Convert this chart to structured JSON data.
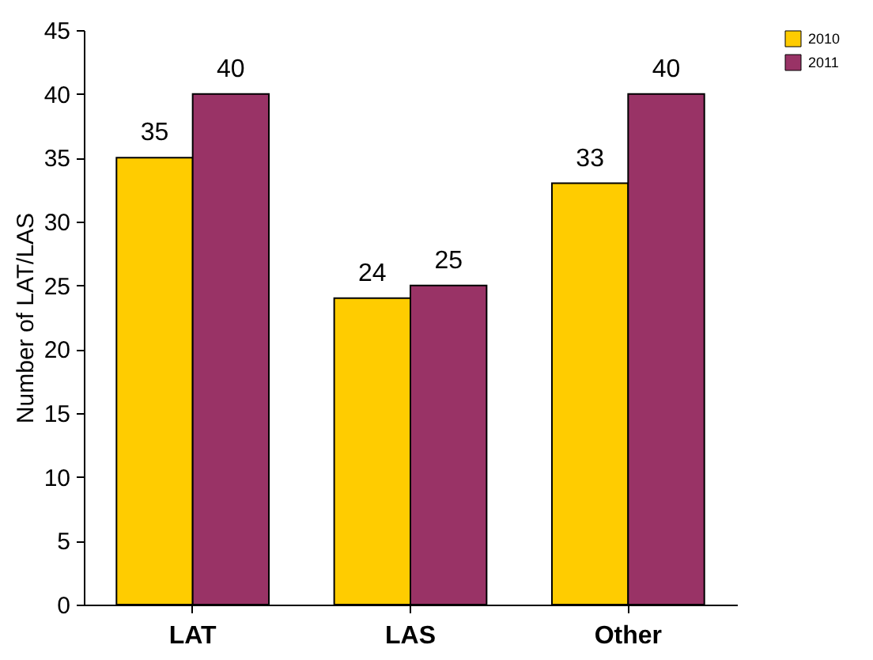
{
  "chart_data": {
    "type": "bar",
    "ylabel": "Number of LAT/LAS",
    "categories": [
      "LAT",
      "LAS",
      "Other"
    ],
    "series": [
      {
        "name": "2010",
        "color": "#ffcc00",
        "values": [
          35,
          24,
          33
        ]
      },
      {
        "name": "2011",
        "color": "#993366",
        "values": [
          40,
          25,
          40
        ]
      }
    ],
    "ylim": [
      0,
      45
    ],
    "yticks": [
      0,
      5,
      10,
      15,
      20,
      25,
      30,
      35,
      40,
      45
    ],
    "data_labels": true,
    "legend": "right",
    "grid": false
  }
}
